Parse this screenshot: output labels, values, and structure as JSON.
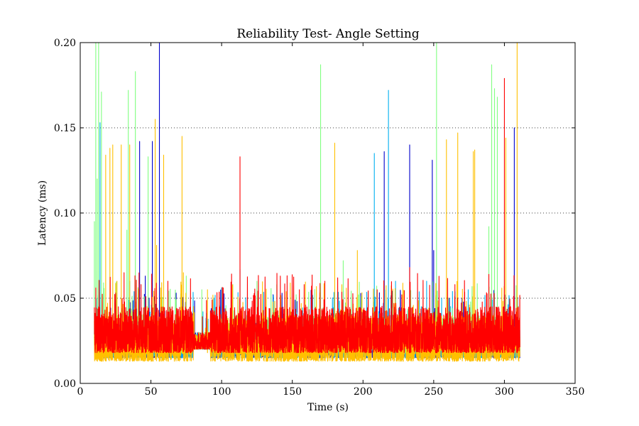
{
  "chart_data": {
    "type": "line",
    "title": "Reliability Test- Angle Setting",
    "xlabel": "Time (s)",
    "ylabel": "Latency (ms)",
    "xlim": [
      0,
      350
    ],
    "ylim": [
      0,
      0.2
    ],
    "xticks": [
      0,
      50,
      100,
      150,
      200,
      250,
      300,
      350
    ],
    "xtick_labels": [
      "0",
      "50",
      "100",
      "150",
      "200",
      "250",
      "300",
      "350"
    ],
    "yticks": [
      0.0,
      0.05,
      0.1,
      0.15,
      0.2
    ],
    "ytick_labels": [
      "0.00",
      "0.05",
      "0.10",
      "0.15",
      "0.20"
    ],
    "grid": "y-dotted",
    "legend": "none",
    "series": [
      {
        "color": "#0000cc",
        "x_range": [
          10,
          311
        ],
        "baseline": [
          0.015,
          0.035
        ],
        "peaks": [
          [
            56,
            0.2
          ],
          [
            51,
            0.142
          ],
          [
            42,
            0.142
          ],
          [
            215,
            0.136
          ],
          [
            233,
            0.14
          ],
          [
            249,
            0.131
          ],
          [
            250,
            0.078
          ],
          [
            307,
            0.15
          ],
          [
            46,
            0.063
          ],
          [
            270,
            0.05
          ]
        ]
      },
      {
        "color": "#00b0f0",
        "x_range": [
          10,
          311
        ],
        "baseline": [
          0.015,
          0.035
        ],
        "peaks": [
          [
            14,
            0.153
          ],
          [
            218,
            0.172
          ],
          [
            208,
            0.135
          ],
          [
            113,
            0.067
          ],
          [
            62,
            0.055
          ],
          [
            100,
            0.056
          ],
          [
            223,
            0.06
          ],
          [
            245,
            0.06
          ],
          [
            35,
            0.06
          ]
        ]
      },
      {
        "color": "#80ff80",
        "x_range": [
          10,
          311
        ],
        "baseline": [
          0.018,
          0.04
        ],
        "peaks": [
          [
            11,
            0.2
          ],
          [
            13,
            0.2
          ],
          [
            15,
            0.171
          ],
          [
            12,
            0.12
          ],
          [
            10,
            0.095
          ],
          [
            34,
            0.172
          ],
          [
            39,
            0.183
          ],
          [
            48,
            0.133
          ],
          [
            170,
            0.187
          ],
          [
            252,
            0.2
          ],
          [
            291,
            0.187
          ],
          [
            293,
            0.173
          ],
          [
            295,
            0.168
          ],
          [
            289,
            0.092
          ],
          [
            300,
            0.09
          ],
          [
            186,
            0.072
          ],
          [
            75,
            0.063
          ],
          [
            86,
            0.055
          ],
          [
            125,
            0.06
          ],
          [
            139,
            0.058
          ],
          [
            33,
            0.09
          ]
        ]
      },
      {
        "color": "#ffc000",
        "x_range": [
          10,
          311
        ],
        "baseline": [
          0.013,
          0.04
        ],
        "peaks": [
          [
            18,
            0.134
          ],
          [
            21,
            0.138
          ],
          [
            23,
            0.14
          ],
          [
            29,
            0.14
          ],
          [
            35,
            0.14
          ],
          [
            53,
            0.155
          ],
          [
            54,
            0.081
          ],
          [
            59,
            0.134
          ],
          [
            72,
            0.145
          ],
          [
            73,
            0.065
          ],
          [
            180,
            0.141
          ],
          [
            196,
            0.078
          ],
          [
            259,
            0.143
          ],
          [
            267,
            0.147
          ],
          [
            278,
            0.136
          ],
          [
            279,
            0.137
          ],
          [
            309,
            0.2
          ],
          [
            301,
            0.144
          ],
          [
            26,
            0.06
          ],
          [
            90,
            0.055
          ]
        ]
      },
      {
        "color": "#ff0000",
        "x_range": [
          10,
          311
        ],
        "baseline": [
          0.018,
          0.045
        ],
        "peaks": [
          [
            113,
            0.133
          ],
          [
            300,
            0.179
          ],
          [
            11,
            0.056
          ],
          [
            31,
            0.065
          ],
          [
            43,
            0.058
          ],
          [
            62,
            0.06
          ],
          [
            155,
            0.055
          ],
          [
            173,
            0.06
          ],
          [
            233,
            0.068
          ],
          [
            289,
            0.064
          ],
          [
            210,
            0.055
          ],
          [
            265,
            0.058
          ]
        ]
      }
    ]
  }
}
